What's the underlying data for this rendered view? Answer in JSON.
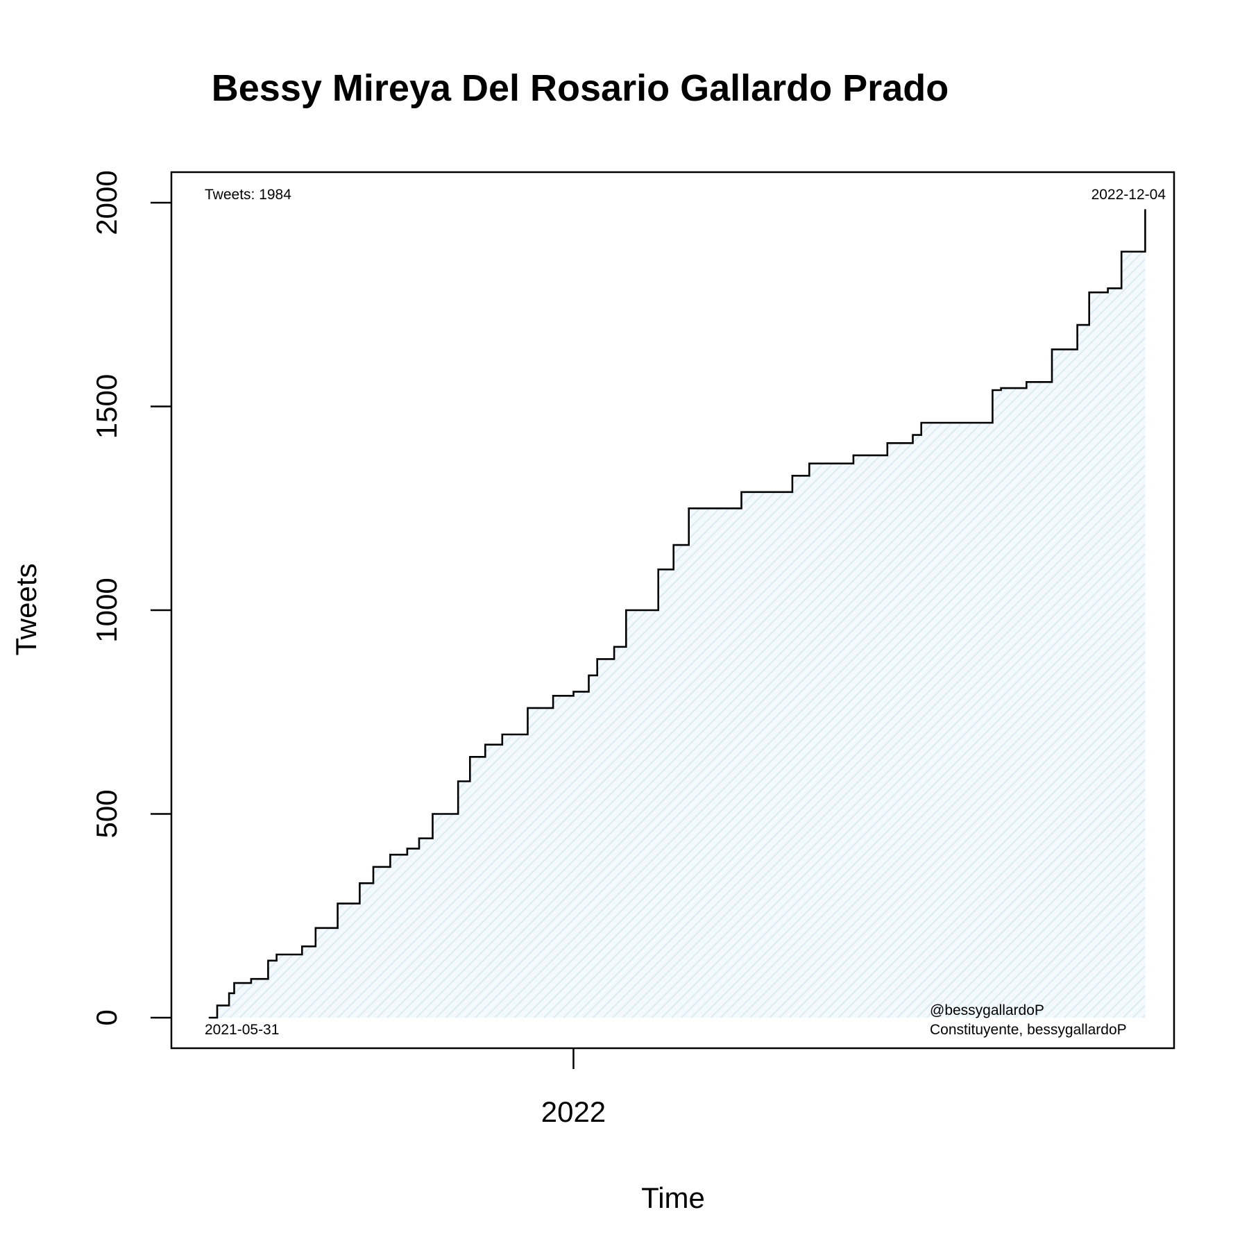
{
  "chart_data": {
    "type": "line",
    "title": "Bessy Mireya Del Rosario Gallardo Prado",
    "xlabel": "Time",
    "ylabel": "Tweets",
    "x_axis": "date",
    "xlim": [
      "2021-05-09",
      "2022-12-21"
    ],
    "ylim": [
      -75,
      2075
    ],
    "x_ticks": [
      {
        "date": "2022-01-01",
        "label": "2022"
      }
    ],
    "y_ticks": [
      0,
      500,
      1000,
      1500,
      2000
    ],
    "annotations": {
      "top_left": "Tweets: 1984",
      "top_right": "2022-12-04",
      "bottom_left": "2021-05-31",
      "bottom_right_line1": "@bessygallardoP",
      "bottom_right_line2": "Constituyente, bessygallardoP"
    },
    "colors": {
      "line": "#000000",
      "fill": "#e3f1f7"
    },
    "series": [
      {
        "x": [
          "2021-05-31",
          "2021-06-05",
          "2021-06-12",
          "2021-06-15",
          "2021-06-25",
          "2021-07-05",
          "2021-07-10",
          "2021-07-25",
          "2021-08-02",
          "2021-08-15",
          "2021-08-28",
          "2021-09-05",
          "2021-09-15",
          "2021-09-25",
          "2021-10-02",
          "2021-10-10",
          "2021-10-25",
          "2021-11-01",
          "2021-11-10",
          "2021-11-20",
          "2021-12-05",
          "2021-12-20",
          "2022-01-01",
          "2022-01-10",
          "2022-01-15",
          "2022-01-25",
          "2022-02-01",
          "2022-02-20",
          "2022-03-01",
          "2022-03-10",
          "2022-04-10",
          "2022-05-10",
          "2022-05-20",
          "2022-06-15",
          "2022-07-05",
          "2022-07-20",
          "2022-07-25",
          "2022-09-05",
          "2022-09-10",
          "2022-09-25",
          "2022-10-10",
          "2022-10-25",
          "2022-11-01",
          "2022-11-12",
          "2022-11-20",
          "2022-12-04"
        ],
        "y": [
          0,
          30,
          60,
          85,
          95,
          140,
          155,
          175,
          220,
          280,
          330,
          370,
          400,
          415,
          440,
          500,
          580,
          640,
          670,
          695,
          760,
          790,
          800,
          840,
          880,
          910,
          1000,
          1100,
          1160,
          1250,
          1290,
          1330,
          1360,
          1380,
          1410,
          1430,
          1460,
          1540,
          1545,
          1560,
          1640,
          1700,
          1780,
          1790,
          1880,
          1984
        ]
      }
    ]
  }
}
